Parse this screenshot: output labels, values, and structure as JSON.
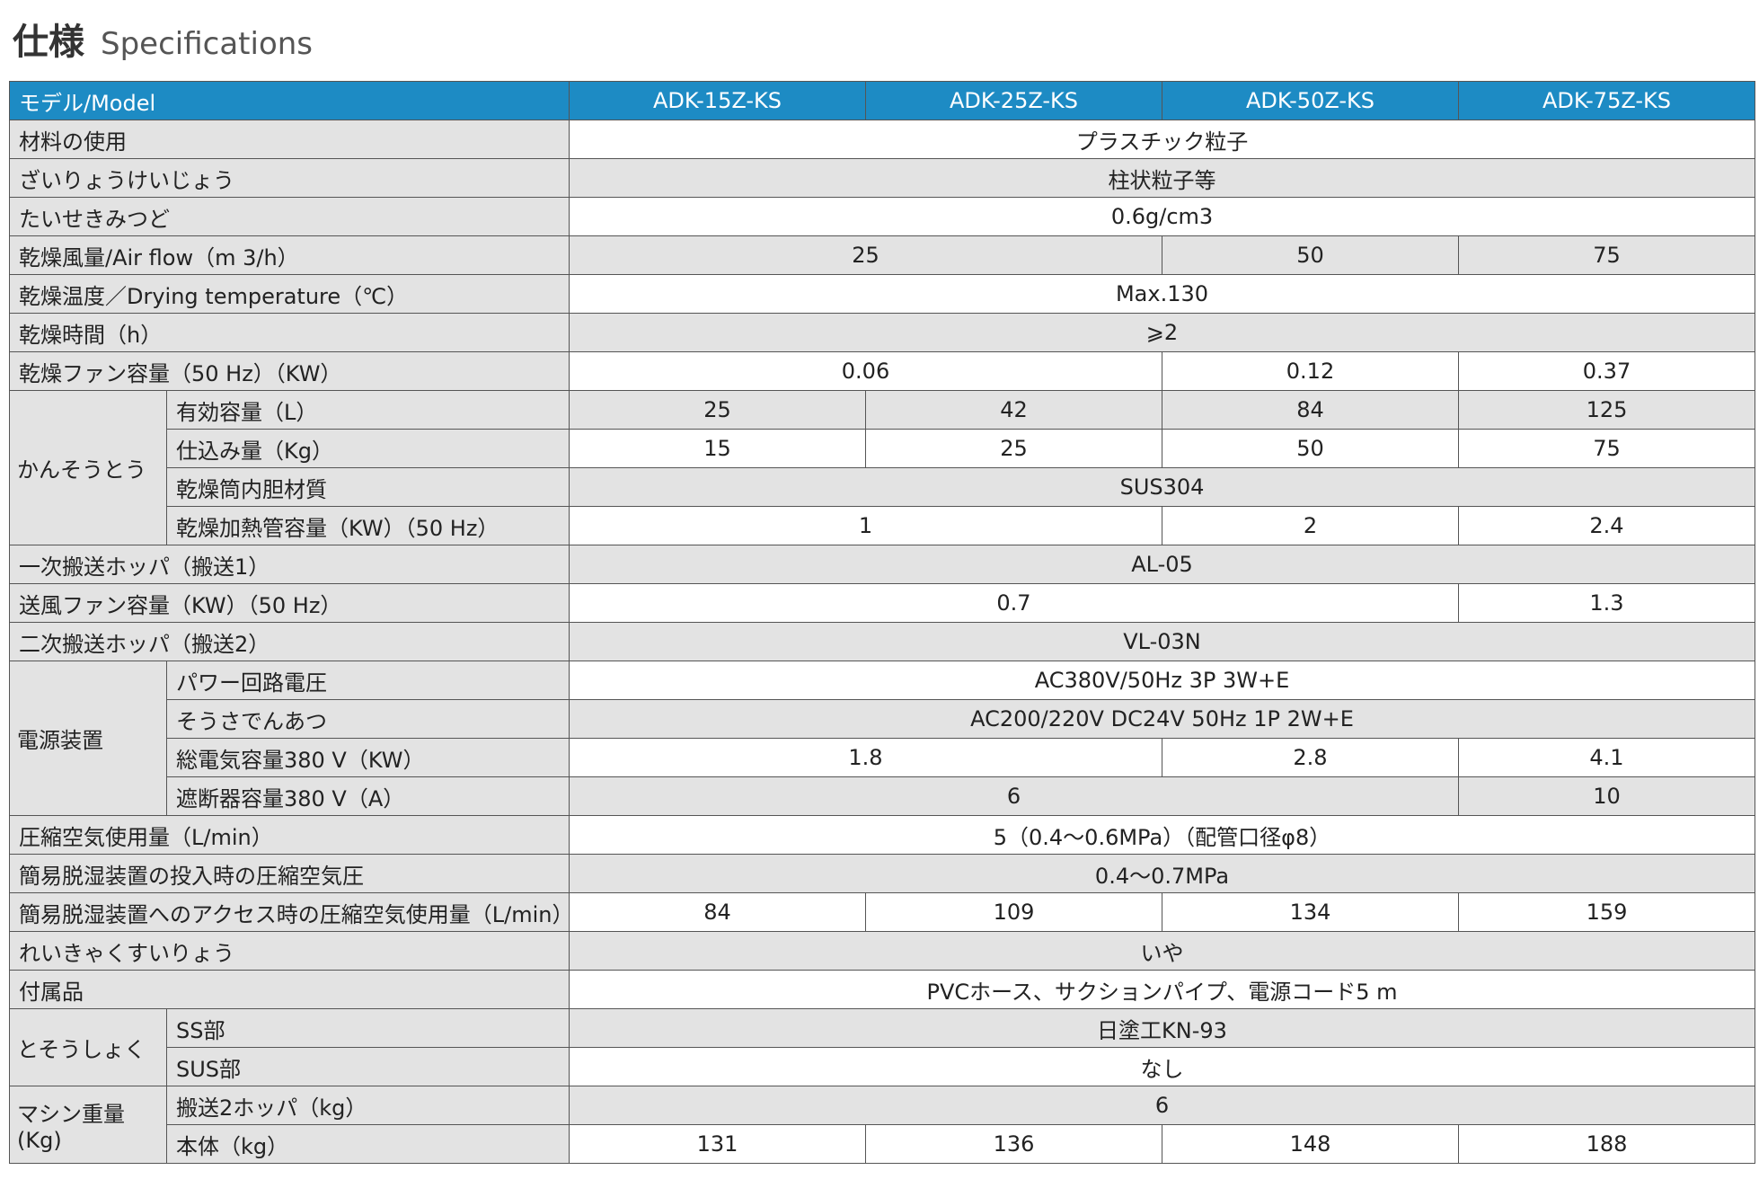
{
  "header": {
    "title": "仕様",
    "subtitle": "Specifications"
  },
  "table": {
    "columns": [
      "モデル/Model",
      "ADK-15Z-KS",
      "ADK-25Z-KS",
      "ADK-50Z-KS",
      "ADK-75Z-KS"
    ],
    "rows": [
      {
        "label": "材料の使用",
        "cells": [
          "プラスチック粒子"
        ]
      },
      {
        "label": "ざいりょうけいじょう",
        "cells": [
          "柱状粒子等"
        ]
      },
      {
        "label": "たいせきみつど",
        "cells": [
          "0.6g/cm3"
        ]
      },
      {
        "label": "乾燥風量/Air flow（m 3/h）",
        "cells": [
          "25",
          "50",
          "75"
        ]
      },
      {
        "label": "乾燥温度／Drying temperature（℃）",
        "cells": [
          "Max.130"
        ]
      },
      {
        "label": "乾燥時間（h）",
        "cells": [
          "⩾2"
        ]
      },
      {
        "label": "乾燥ファン容量（50 Hz）（KW）",
        "cells": [
          "0.06",
          "0.12",
          "0.37"
        ]
      },
      {
        "group": "かんそうとう",
        "items": [
          {
            "label": "有効容量（L）",
            "cells": [
              "25",
              "42",
              "84",
              "125"
            ]
          },
          {
            "label": "仕込み量（Kg）",
            "cells": [
              "15",
              "25",
              "50",
              "75"
            ]
          },
          {
            "label": "乾燥筒内胆材質",
            "cells": [
              "SUS304"
            ]
          },
          {
            "label": "乾燥加熱管容量（KW）（50 Hz）",
            "cells": [
              "1",
              "2",
              "2.4"
            ]
          }
        ]
      },
      {
        "label": "一次搬送ホッパ（搬送1）",
        "cells": [
          "AL-05"
        ]
      },
      {
        "label": "送風ファン容量（KW）（50 Hz）",
        "cells": [
          "0.7",
          "1.3"
        ]
      },
      {
        "label": "二次搬送ホッパ（搬送2）",
        "cells": [
          "VL-03N"
        ]
      },
      {
        "group": "電源装置",
        "items": [
          {
            "label": "パワー回路電圧",
            "cells": [
              "AC380V/50Hz 3P 3W+E"
            ]
          },
          {
            "label": "そうさでんあつ",
            "cells": [
              "AC200/220V DC24V 50Hz 1P 2W+E"
            ]
          },
          {
            "label": "総電気容量380 V（KW）",
            "cells": [
              "1.8",
              "2.8",
              "4.1"
            ]
          },
          {
            "label": "遮断器容量380 V（A）",
            "cells": [
              "6",
              "10"
            ]
          }
        ]
      },
      {
        "label": "圧縮空気使用量（L/min）",
        "cells": [
          "5（0.4～0.6MPa）（配管口径φ8）"
        ]
      },
      {
        "label": "簡易脱湿装置の投入時の圧縮空気圧",
        "cells": [
          "0.4～0.7MPa"
        ]
      },
      {
        "label": "簡易脱湿装置へのアクセス時の圧縮空気使用量（L/min）",
        "cells": [
          "84",
          "109",
          "134",
          "159"
        ]
      },
      {
        "label": "れいきゃくすいりょう",
        "cells": [
          "いや"
        ]
      },
      {
        "label": "付属品",
        "cells": [
          "PVCホース、サクションパイプ、電源コード5 m"
        ]
      },
      {
        "group": "とそうしょく",
        "items": [
          {
            "label": "SS部",
            "cells": [
              "日塗工KN-93"
            ]
          },
          {
            "label": "SUS部",
            "cells": [
              "なし"
            ]
          }
        ]
      },
      {
        "group": "マシン重量\n(Kg)",
        "items": [
          {
            "label": "搬送2ホッパ（kg）",
            "cells": [
              "6"
            ]
          },
          {
            "label": "本体（kg）",
            "cells": [
              "131",
              "136",
              "148",
              "188"
            ]
          }
        ]
      }
    ]
  }
}
